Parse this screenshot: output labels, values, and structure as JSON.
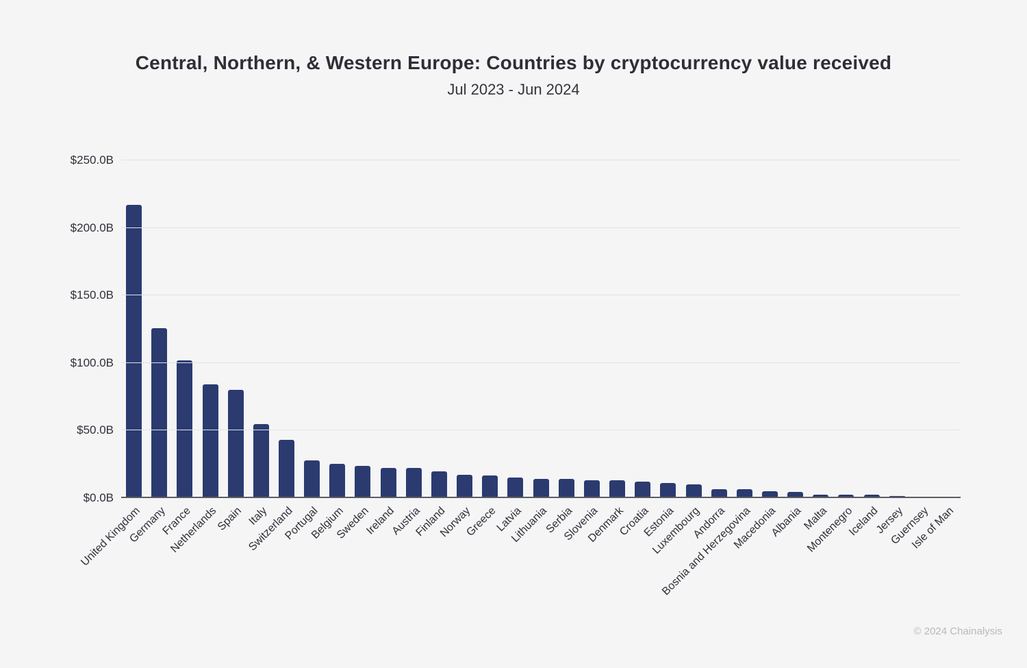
{
  "footer": {
    "copyright": "© 2024 Chainalysis"
  },
  "chart_data": {
    "type": "bar",
    "title": "Central, Northern, & Western Europe: Countries by cryptocurrency value received",
    "subtitle": "Jul 2023 - Jun 2024",
    "xlabel": "",
    "ylabel": "",
    "units": "USD billions",
    "categories": [
      "United Kingdom",
      "Germany",
      "France",
      "Netherlands",
      "Spain",
      "Italy",
      "Switzerland",
      "Portugal",
      "Belgium",
      "Sweden",
      "Ireland",
      "Austria",
      "Finland",
      "Norway",
      "Greece",
      "Latvia",
      "Lithuania",
      "Serbia",
      "Slovenia",
      "Denmark",
      "Croatia",
      "Estonia",
      "Luxembourg",
      "Andorra",
      "Bosnia and Herzegovina",
      "Macedonia",
      "Albania",
      "Malta",
      "Montenegro",
      "Iceland",
      "Jersey",
      "Guernsey",
      "Isle of Man"
    ],
    "values": [
      217,
      125.3,
      101.2,
      83.7,
      79.6,
      54.2,
      42.5,
      27.1,
      24.2,
      23.1,
      21.6,
      21.4,
      19.0,
      16.2,
      16.0,
      14.1,
      13.2,
      13.0,
      12.2,
      12.0,
      11.3,
      10.4,
      9.0,
      5.6,
      5.4,
      4.3,
      3.4,
      1.6,
      1.5,
      1.4,
      0.3,
      0.2,
      0.1
    ],
    "ylim": [
      0,
      250
    ],
    "y_ticks": [
      {
        "label": "$0.0B",
        "value": 0
      },
      {
        "label": "$50.0B",
        "value": 50
      },
      {
        "label": "$100.0B",
        "value": 100
      },
      {
        "label": "$150.0B",
        "value": 150
      },
      {
        "label": "$200.0B",
        "value": 200
      },
      {
        "label": "$250.0B",
        "value": 250
      }
    ],
    "grid": true,
    "legend": "none",
    "bar_color": "#2b3b70",
    "label_rotation_deg": -45
  }
}
